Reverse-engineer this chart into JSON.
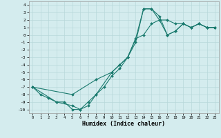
{
  "title": "",
  "xlabel": "Humidex (Indice chaleur)",
  "bg_color": "#d4ecee",
  "grid_color": "#b8d8da",
  "line_color": "#1a7a6e",
  "markersize": 2.0,
  "linewidth": 0.8,
  "xlim": [
    -0.5,
    23.5
  ],
  "ylim": [
    -10.5,
    4.5
  ],
  "xticks": [
    0,
    1,
    2,
    3,
    4,
    5,
    6,
    7,
    8,
    9,
    10,
    11,
    12,
    13,
    14,
    15,
    16,
    17,
    18,
    19,
    20,
    21,
    22,
    23
  ],
  "yticks": [
    -10,
    -9,
    -8,
    -7,
    -6,
    -5,
    -4,
    -3,
    -2,
    -1,
    0,
    1,
    2,
    3,
    4
  ],
  "line1_x": [
    0,
    1,
    2,
    3,
    4,
    5,
    6,
    7,
    8,
    9,
    10,
    11,
    12,
    13,
    14,
    15,
    16,
    17,
    18,
    19,
    20,
    21,
    22,
    23
  ],
  "line1_y": [
    -7,
    -8,
    -8.5,
    -9,
    -9,
    -10,
    -10,
    -9.5,
    -8,
    -7,
    -5.5,
    -4.5,
    -3,
    -0.5,
    0,
    1.5,
    2,
    2,
    1.5,
    1.5,
    1,
    1.5,
    1,
    1
  ],
  "line2_x": [
    0,
    3,
    5,
    6,
    7,
    8,
    10,
    11,
    12,
    13,
    14,
    15,
    16,
    17,
    18,
    19,
    20,
    21,
    22,
    23
  ],
  "line2_y": [
    -7,
    -9,
    -9.5,
    -10,
    -9,
    -8,
    -5,
    -4,
    -3,
    -0.5,
    3.5,
    3.5,
    2,
    0,
    0.5,
    1.5,
    1,
    1.5,
    1,
    1
  ],
  "line3_x": [
    0,
    5,
    8,
    10,
    11,
    12,
    13,
    14,
    15,
    16,
    17,
    18,
    19,
    20,
    21,
    22,
    23
  ],
  "line3_y": [
    -7,
    -8,
    -6,
    -5,
    -4,
    -3,
    -1,
    3.5,
    3.5,
    2.5,
    0,
    0.5,
    1.5,
    1,
    1.5,
    1,
    1
  ]
}
